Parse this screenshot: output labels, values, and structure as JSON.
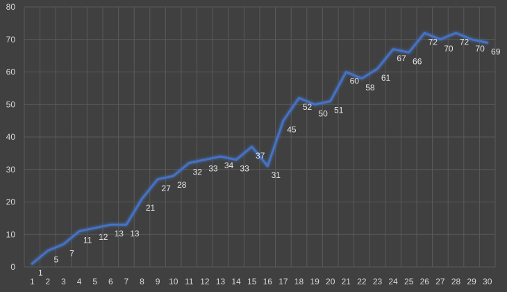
{
  "chart_data": {
    "type": "line",
    "x": [
      1,
      2,
      3,
      4,
      5,
      6,
      7,
      8,
      9,
      10,
      11,
      12,
      13,
      14,
      15,
      16,
      17,
      18,
      19,
      20,
      21,
      22,
      23,
      24,
      25,
      26,
      27,
      28,
      29,
      30
    ],
    "series": [
      {
        "values": [
          1,
          5,
          7,
          11,
          12,
          13,
          13,
          21,
          27,
          28,
          32,
          33,
          34,
          33,
          37,
          31,
          45,
          52,
          50,
          51,
          60,
          58,
          61,
          67,
          66,
          72,
          70,
          72,
          70,
          69
        ]
      }
    ],
    "ylim": [
      0,
      80
    ],
    "yticks": [
      0,
      10,
      20,
      30,
      40,
      50,
      60,
      70,
      80
    ],
    "grid": true,
    "line_color": "#4472c4",
    "title": "",
    "xlabel": "",
    "ylabel": ""
  }
}
